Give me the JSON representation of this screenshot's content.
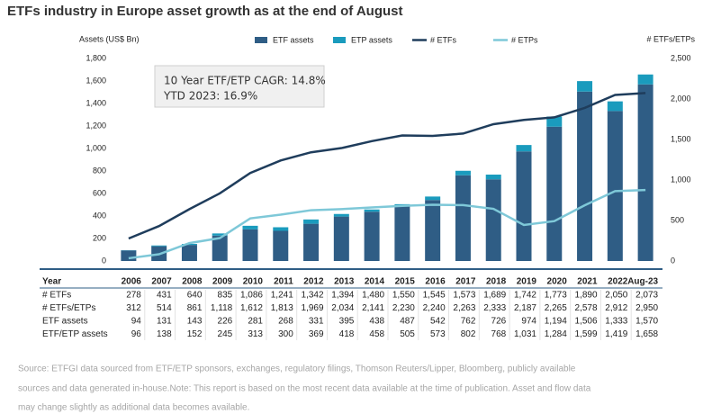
{
  "chart_data": {
    "type": "bar",
    "title": "ETFs industry in Europe asset growth as at the end of August",
    "y_label": "Assets (US$ Bn)",
    "y2_label": "# ETFs/ETPs",
    "annotations": [
      "10 Year ETF/ETP CAGR: 14.8%",
      "YTD 2023: 16.9%"
    ],
    "categories": [
      "2006",
      "2007",
      "2008",
      "2009",
      "2010",
      "2011",
      "2012",
      "2013",
      "2014",
      "2015",
      "2016",
      "2017",
      "2018",
      "2019",
      "2020",
      "2021",
      "2022",
      "Aug-23"
    ],
    "ylim": [
      0,
      1800
    ],
    "yticks": [
      0,
      200,
      400,
      600,
      800,
      {
        "value": 1000,
        "label": "1,000"
      },
      {
        "value": 1200,
        "label": "1,200"
      },
      {
        "value": 1400,
        "label": "1,400"
      },
      {
        "value": 1600,
        "label": "1,600"
      },
      {
        "value": 1800,
        "label": "1,800"
      }
    ],
    "y2lim": [
      0,
      2500
    ],
    "y2ticks": [
      0,
      500,
      {
        "value": 1000,
        "label": "1,000"
      },
      {
        "value": 1500,
        "label": "1,500"
      },
      {
        "value": 2000,
        "label": "2,000"
      },
      {
        "value": 2500,
        "label": "2,500"
      }
    ],
    "legend": "top",
    "series": [
      {
        "name": "ETF assets",
        "type": "bar",
        "color": "#2f5d85",
        "values": [
          94,
          131,
          143,
          226,
          281,
          268,
          331,
          395,
          438,
          487,
          542,
          762,
          726,
          974,
          1194,
          1506,
          1333,
          1570
        ]
      },
      {
        "name": "ETP assets",
        "type": "bar",
        "color": "#1a9bbd",
        "values": [
          2,
          7,
          9,
          19,
          32,
          32,
          38,
          23,
          20,
          18,
          31,
          40,
          42,
          57,
          90,
          93,
          86,
          88
        ]
      },
      {
        "name": "# ETFs",
        "type": "line",
        "axis": "y2",
        "color": "#1f3d5c",
        "values": [
          278,
          431,
          640,
          835,
          1086,
          1241,
          1342,
          1394,
          1480,
          1550,
          1545,
          1573,
          1689,
          1742,
          1773,
          1890,
          2050,
          2073
        ]
      },
      {
        "name": "# ETPs",
        "type": "line",
        "axis": "y2",
        "color": "#7ec8d8",
        "values": [
          34,
          83,
          221,
          283,
          526,
          572,
          627,
          640,
          661,
          680,
          695,
          690,
          644,
          445,
          492,
          688,
          862,
          877
        ]
      }
    ]
  },
  "table": {
    "header": "Year",
    "rows": [
      {
        "label": "# ETFs",
        "cells": [
          "278",
          "431",
          "640",
          "835",
          "1,086",
          "1,241",
          "1,342",
          "1,394",
          "1,480",
          "1,550",
          "1,545",
          "1,573",
          "1,689",
          "1,742",
          "1,773",
          "1,890",
          "2,050",
          "2,073"
        ]
      },
      {
        "label": "# ETFs/ETPs",
        "cells": [
          "312",
          "514",
          "861",
          "1,118",
          "1,612",
          "1,813",
          "1,969",
          "2,034",
          "2,141",
          "2,230",
          "2,240",
          "2,263",
          "2,333",
          "2,187",
          "2,265",
          "2,578",
          "2,912",
          "2,950"
        ]
      },
      {
        "label": "ETF assets",
        "cells": [
          "94",
          "131",
          "143",
          "226",
          "281",
          "268",
          "331",
          "395",
          "438",
          "487",
          "542",
          "762",
          "726",
          "974",
          "1,194",
          "1,506",
          "1,333",
          "1,570"
        ]
      },
      {
        "label": "ETF/ETP assets",
        "cells": [
          "96",
          "138",
          "152",
          "245",
          "313",
          "300",
          "369",
          "418",
          "458",
          "505",
          "573",
          "802",
          "768",
          "1,031",
          "1,284",
          "1,599",
          "1,419",
          "1,658"
        ]
      }
    ]
  },
  "source": [
    "Source: ETFGI data sourced from ETF/ETP sponsors, exchanges, regulatory filings, Thomson Reuters/Lipper, Bloomberg, publicly available",
    "sources and data generated in-house.Note: This report is based on the most recent data available at the time of publication. Asset and flow data",
    "may change slightly as additional data becomes available."
  ]
}
